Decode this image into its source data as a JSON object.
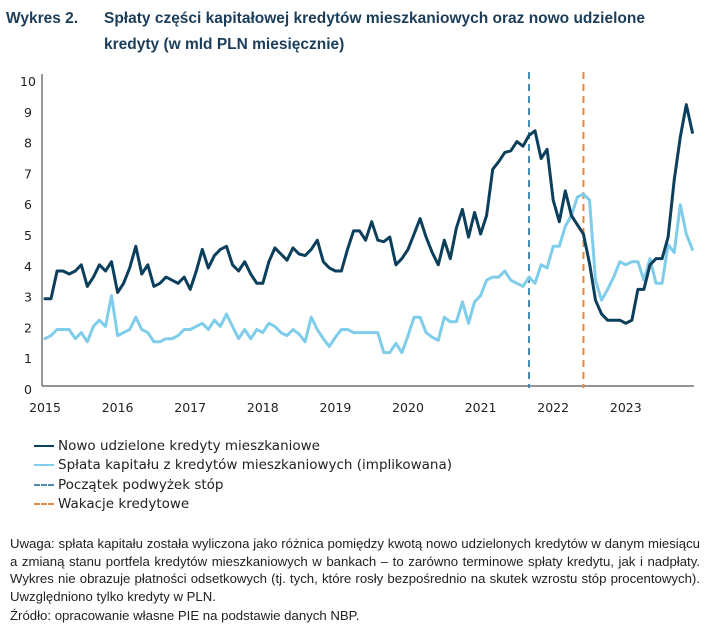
{
  "header": {
    "figure_number": "Wykres 2.",
    "title": "Spłaty części kapitałowej kredytów mieszkaniowych oraz nowo udzielone kredyty (w mld PLN miesięcznie)"
  },
  "colors": {
    "title": "#1c3d5a",
    "new_loans": "#0b3f5c",
    "repayment": "#7fcdea",
    "rate_hikes": "#4a8db0",
    "credit_holidays": "#e8893a",
    "axis": "#555555"
  },
  "chart_data": {
    "type": "line",
    "title": "Spłaty części kapitałowej kredytów mieszkaniowych oraz nowo udzielone kredyty (w mld PLN miesięcznie)",
    "xlabel": "",
    "ylabel": "",
    "ylim": [
      0,
      10
    ],
    "yticks": [
      "0",
      "1",
      "2",
      "3",
      "4",
      "5",
      "6",
      "7",
      "8",
      "9",
      "10"
    ],
    "xticks": [
      "2015",
      "2016",
      "2017",
      "2018",
      "2019",
      "2020",
      "2021",
      "2022",
      "2023"
    ],
    "x_start": "2015-01",
    "x_frequency": "monthly",
    "grid": false,
    "legend_position": "bottom-left",
    "series": [
      {
        "name": "Nowo udzielone kredyty mieszkaniowe",
        "style": "solid",
        "values": [
          2.9,
          2.9,
          3.8,
          3.8,
          3.7,
          3.8,
          4.0,
          3.3,
          3.6,
          4.0,
          3.8,
          4.1,
          3.1,
          3.4,
          3.9,
          4.6,
          3.7,
          4.0,
          3.3,
          3.4,
          3.6,
          3.5,
          3.4,
          3.6,
          3.2,
          3.8,
          4.5,
          3.9,
          4.3,
          4.5,
          4.6,
          4.0,
          3.8,
          4.1,
          3.7,
          3.4,
          3.4,
          4.1,
          4.55,
          4.35,
          4.15,
          4.55,
          4.35,
          4.3,
          4.5,
          4.8,
          4.1,
          3.9,
          3.8,
          3.8,
          4.5,
          5.1,
          5.1,
          4.8,
          5.4,
          4.8,
          4.75,
          4.9,
          4.0,
          4.2,
          4.5,
          5.0,
          5.5,
          4.9,
          4.4,
          4.0,
          4.8,
          4.2,
          5.2,
          5.8,
          4.9,
          5.7,
          5.0,
          5.6,
          7.1,
          7.35,
          7.65,
          7.7,
          8.0,
          7.85,
          8.2,
          8.35,
          7.45,
          7.75,
          6.1,
          5.4,
          6.4,
          5.6,
          5.3,
          5.0,
          4.05,
          2.85,
          2.4,
          2.2,
          2.2,
          2.2,
          2.1,
          2.2,
          3.2,
          3.2,
          4.0,
          4.2,
          4.2,
          4.9,
          6.75,
          8.15,
          9.2,
          8.3
        ]
      },
      {
        "name": "Spłata kapitału z kredytów mieszkaniowych (implikowana)",
        "style": "solid",
        "values": [
          1.6,
          1.7,
          1.9,
          1.9,
          1.9,
          1.6,
          1.8,
          1.5,
          2.0,
          2.2,
          2.0,
          3.0,
          1.7,
          1.8,
          1.9,
          2.3,
          1.9,
          1.8,
          1.5,
          1.5,
          1.6,
          1.6,
          1.7,
          1.9,
          1.9,
          2.0,
          2.1,
          1.9,
          2.2,
          2.0,
          2.4,
          2.0,
          1.6,
          1.9,
          1.6,
          1.9,
          1.8,
          2.1,
          2.0,
          1.8,
          1.7,
          1.9,
          1.75,
          1.5,
          2.3,
          1.9,
          1.6,
          1.35,
          1.65,
          1.9,
          1.9,
          1.8,
          1.8,
          1.8,
          1.8,
          1.8,
          1.15,
          1.15,
          1.45,
          1.15,
          1.7,
          2.3,
          2.3,
          1.8,
          1.65,
          1.55,
          2.3,
          2.15,
          2.15,
          2.8,
          2.1,
          2.8,
          3.0,
          3.5,
          3.6,
          3.6,
          3.8,
          3.5,
          3.4,
          3.3,
          3.6,
          3.4,
          4.0,
          3.9,
          4.6,
          4.6,
          5.25,
          5.6,
          6.2,
          6.3,
          6.1,
          3.5,
          2.85,
          3.2,
          3.6,
          4.1,
          4.0,
          4.1,
          4.1,
          3.5,
          4.2,
          3.4,
          3.4,
          4.65,
          4.4,
          5.95,
          5.0,
          4.5
        ]
      }
    ],
    "vertical_markers": [
      {
        "name": "Początek podwyżek stóp",
        "style": "dashed",
        "x_month_index": 80
      },
      {
        "name": "Wakacje kredytowe",
        "style": "dashed",
        "x_month_index": 89
      }
    ]
  },
  "legend": [
    {
      "label": "Nowo udzielone kredyty mieszkaniowe",
      "style": "solid",
      "color_key": "new_loans"
    },
    {
      "label": "Spłata kapitału z kredytów mieszkaniowych (implikowana)",
      "style": "solid",
      "color_key": "repayment"
    },
    {
      "label": "Początek podwyżek stóp",
      "style": "dashed",
      "color_key": "rate_hikes"
    },
    {
      "label": "Wakacje kredytowe",
      "style": "dashed",
      "color_key": "credit_holidays"
    }
  ],
  "note": "Uwaga: spłata kapitału została wyliczona jako różnica pomiędzy kwotą nowo udzielonych kredytów w danym miesiącu a zmianą stanu portfela kredytów mieszkaniowych w bankach – to zarówno terminowe spłaty kredytu, jak i nadpłaty. Wykres nie obrazuje płatności odsetkowych (tj. tych, które rosły bezpośrednio na skutek wzrostu stóp procentowych). Uwzględniono tylko kredyty w PLN.",
  "source": "Źródło: opracowanie własne PIE na podstawie danych NBP."
}
